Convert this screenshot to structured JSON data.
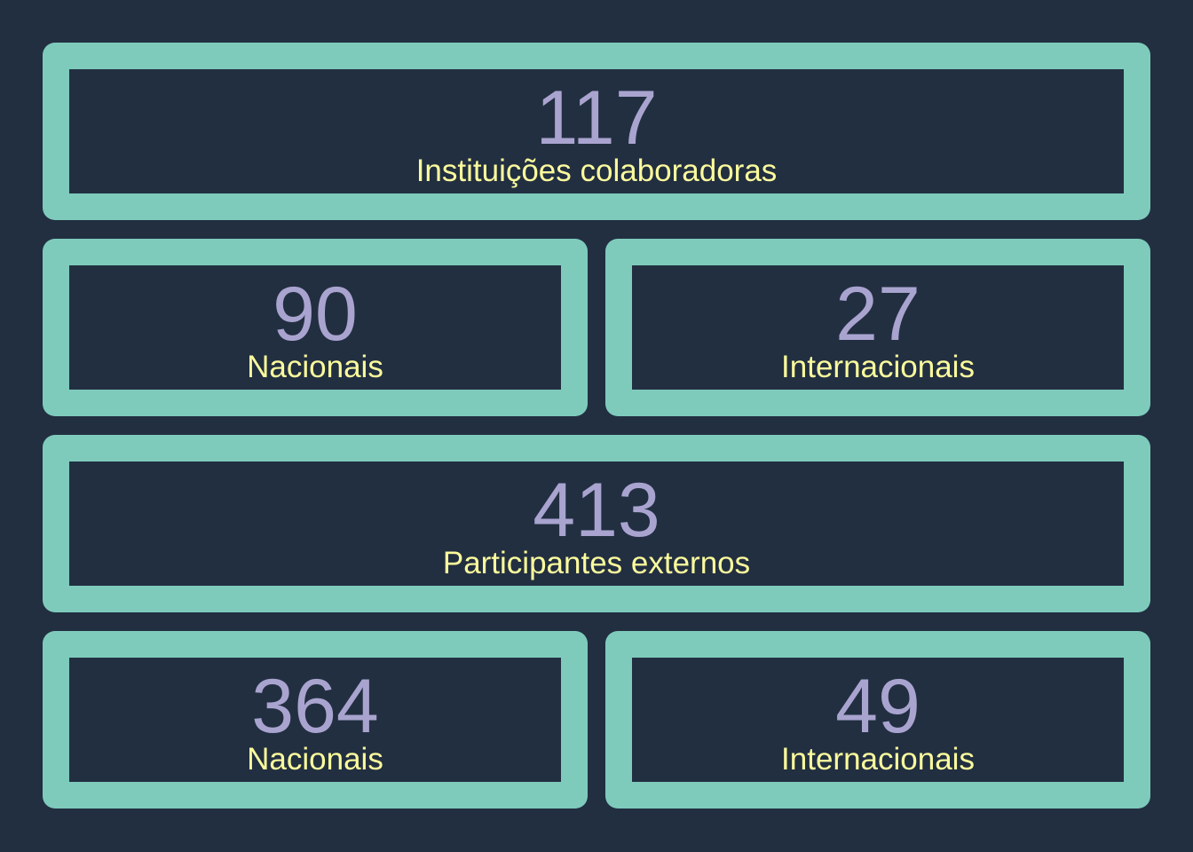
{
  "institutions": {
    "total": {
      "value": "117",
      "label": "Instituições colaboradoras"
    },
    "national": {
      "value": "90",
      "label": "Nacionais"
    },
    "international": {
      "value": "27",
      "label": "Internacionais"
    }
  },
  "participants": {
    "total": {
      "value": "413",
      "label": "Participantes externos"
    },
    "national": {
      "value": "364",
      "label": "Nacionais"
    },
    "international": {
      "value": "49",
      "label": "Internacionais"
    }
  },
  "colors": {
    "background": "#222f41",
    "card_border": "#7ecbbc",
    "number": "#a9a4cf",
    "label": "#fbfb9c"
  }
}
